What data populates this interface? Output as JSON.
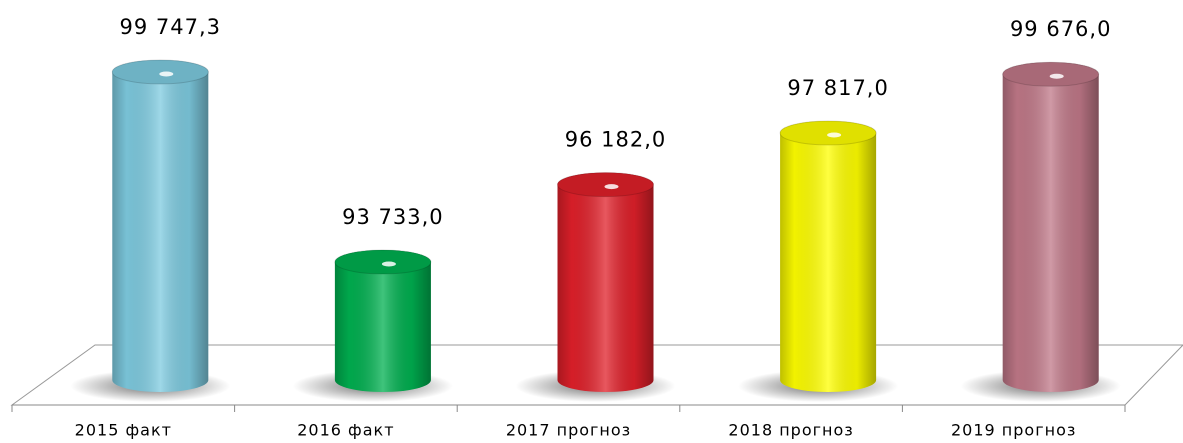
{
  "chart_data": {
    "type": "bar",
    "categories": [
      "2015 факт",
      "2016 факт",
      "2017 прогноз",
      "2018 прогноз",
      "2019 прогноз"
    ],
    "values": [
      99747.3,
      93733.0,
      96182.0,
      97817.0,
      99676.0
    ],
    "value_labels": [
      "99 747,3",
      "93 733,0",
      "96 182,0",
      "97 817,0",
      "99 676,0"
    ],
    "colors": [
      "#7ecbe0",
      "#00b050",
      "#e0202a",
      "#ffff00",
      "#c07888"
    ],
    "ylim": [
      90000,
      100000
    ]
  }
}
